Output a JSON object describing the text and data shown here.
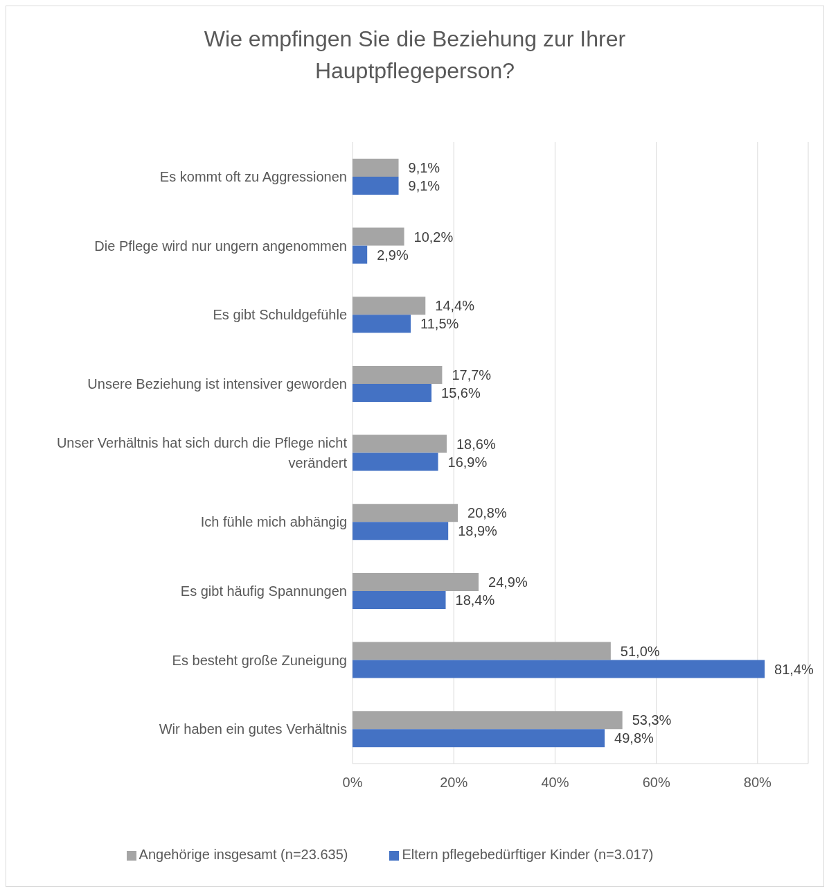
{
  "chart_data": {
    "type": "bar",
    "orientation": "horizontal",
    "title": "Wie empfingen Sie die Beziehung zur Ihrer Hauptpflegeperson?",
    "categories": [
      "Es kommt oft zu Aggressionen",
      "Die Pflege wird nur ungern angenommen",
      "Es gibt Schuldgefühle",
      "Unsere Beziehung ist intensiver geworden",
      "Unser Verhältnis hat sich durch die Pflege nicht verändert",
      "Ich fühle mich abhängig",
      "Es gibt häufig Spannungen",
      "Es besteht große Zuneigung",
      "Wir haben ein gutes Verhältnis"
    ],
    "series": [
      {
        "name": "Angehörige insgesamt (n=23.635)",
        "color": "#a5a5a5",
        "values": [
          9.1,
          10.2,
          14.4,
          17.7,
          18.6,
          20.8,
          24.9,
          51.0,
          53.3
        ],
        "value_labels": [
          "9,1%",
          "10,2%",
          "14,4%",
          "17,7%",
          "18,6%",
          "20,8%",
          "24,9%",
          "51,0%",
          "53,3%"
        ]
      },
      {
        "name": "Eltern pflegebedürftiger Kinder (n=3.017)",
        "color": "#4472c4",
        "values": [
          9.1,
          2.9,
          11.5,
          15.6,
          16.9,
          18.9,
          18.4,
          81.4,
          49.8
        ],
        "value_labels": [
          "9,1%",
          "2,9%",
          "11,5%",
          "15,6%",
          "16,9%",
          "18,9%",
          "18,4%",
          "81,4%",
          "49,8%"
        ]
      }
    ],
    "xlim": [
      0,
      90
    ],
    "xticks": [
      {
        "value": 0,
        "label": "0%"
      },
      {
        "value": 20,
        "label": "20%"
      },
      {
        "value": 40,
        "label": "40%"
      },
      {
        "value": 60,
        "label": "60%"
      },
      {
        "value": 80,
        "label": "80%"
      }
    ],
    "grid": "x",
    "legend": "bottom"
  }
}
